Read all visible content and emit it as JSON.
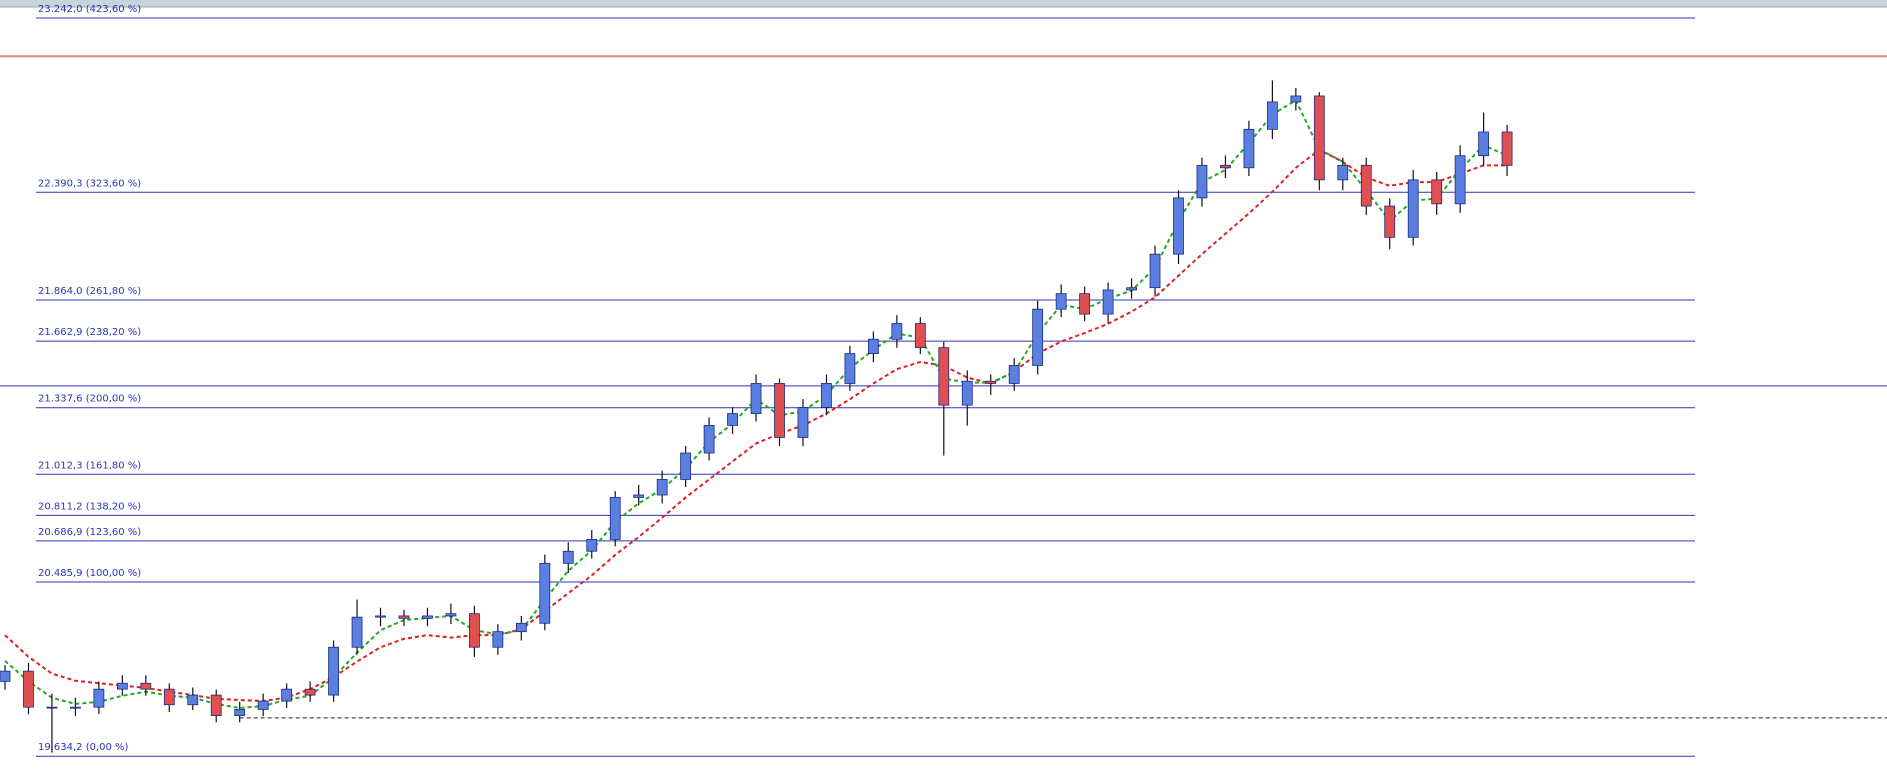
{
  "chart_data": {
    "type": "candlestick",
    "ylim": [
      19523,
      23330
    ],
    "up_color": "#5b7fe0",
    "down_color": "#e05050",
    "outline_color": "#1c2a80",
    "open": [
      20000,
      20050,
      19874,
      19874,
      19874,
      19962,
      19991,
      19962,
      19886,
      19933,
      19833,
      19863,
      19904,
      19962,
      19933,
      20167,
      20314,
      20320,
      20308,
      20320,
      20331,
      20167,
      20243,
      20284,
      20577,
      20636,
      20694,
      20899,
      20911,
      20987,
      21116,
      21251,
      21309,
      21456,
      21192,
      21339,
      21456,
      21602,
      21672,
      21749,
      21631,
      21350,
      21467,
      21456,
      21544,
      21819,
      21895,
      21795,
      21913,
      21924,
      22088,
      22363,
      22522,
      22510,
      22698,
      22832,
      22861,
      22451,
      22522,
      22323,
      22170,
      22451,
      22334,
      22569,
      22685
    ],
    "close": [
      20050,
      19874,
      19874,
      19874,
      19962,
      19991,
      19962,
      19886,
      19933,
      19833,
      19863,
      19904,
      19962,
      19933,
      20167,
      20314,
      20320,
      20308,
      20320,
      20331,
      20167,
      20243,
      20284,
      20577,
      20636,
      20694,
      20899,
      20911,
      20987,
      21116,
      21251,
      21309,
      21456,
      21192,
      21339,
      21456,
      21602,
      21672,
      21749,
      21631,
      21350,
      21467,
      21456,
      21544,
      21819,
      21895,
      21795,
      21913,
      21924,
      22088,
      22363,
      22522,
      22510,
      22698,
      22832,
      22861,
      22451,
      22522,
      22323,
      22170,
      22451,
      22334,
      22569,
      22685,
      22522
    ],
    "high": [
      20080,
      20090,
      19940,
      19920,
      20000,
      20030,
      20030,
      19990,
      19970,
      19960,
      19900,
      19940,
      19990,
      20000,
      20200,
      20400,
      20360,
      20350,
      20360,
      20380,
      20370,
      20280,
      20320,
      20620,
      20680,
      20740,
      20930,
      20960,
      21030,
      21150,
      21290,
      21340,
      21500,
      21480,
      21380,
      21500,
      21640,
      21710,
      21790,
      21780,
      21660,
      21520,
      21500,
      21580,
      21860,
      21940,
      21930,
      21950,
      21970,
      22130,
      22400,
      22560,
      22570,
      22740,
      22937,
      22900,
      22880,
      22560,
      22560,
      22360,
      22500,
      22490,
      22620,
      22780,
      22720
    ],
    "low": [
      19960,
      19840,
      19652,
      19830,
      19840,
      19930,
      19930,
      19850,
      19860,
      19800,
      19800,
      19830,
      19870,
      19900,
      19900,
      20130,
      20270,
      20270,
      20270,
      20280,
      20120,
      20130,
      20200,
      20250,
      20530,
      20600,
      20660,
      20860,
      20870,
      20950,
      21080,
      21210,
      21270,
      21150,
      21150,
      21300,
      21420,
      21560,
      21630,
      21600,
      21104,
      21250,
      21400,
      21420,
      21500,
      21780,
      21760,
      21750,
      21870,
      21880,
      22040,
      22320,
      22460,
      22470,
      22650,
      22790,
      22400,
      22400,
      22280,
      22112,
      22130,
      22280,
      22290,
      22520,
      22470
    ],
    "ma_fast": {
      "color": "#22aa22",
      "values": [
        20100,
        20000,
        19920,
        19890,
        19900,
        19930,
        19950,
        19930,
        19920,
        19890,
        19870,
        19880,
        19910,
        19930,
        20020,
        20140,
        20250,
        20300,
        20310,
        20320,
        20250,
        20230,
        20250,
        20400,
        20540,
        20640,
        20780,
        20870,
        20940,
        21040,
        21170,
        21260,
        21380,
        21300,
        21320,
        21400,
        21530,
        21620,
        21700,
        21680,
        21480,
        21460,
        21460,
        21510,
        21700,
        21840,
        21820,
        21870,
        21910,
        22020,
        22250,
        22440,
        22500,
        22630,
        22770,
        22840,
        22600,
        22540,
        22400,
        22250,
        22350,
        22360,
        22500,
        22620,
        22570
      ]
    },
    "ma_slow": {
      "color": "#e02020",
      "values": [
        20226,
        20120,
        20038,
        20003,
        19991,
        19980,
        19968,
        19950,
        19933,
        19915,
        19909,
        19904,
        19921,
        19962,
        20021,
        20097,
        20167,
        20208,
        20226,
        20214,
        20226,
        20226,
        20255,
        20343,
        20431,
        20518,
        20618,
        20706,
        20800,
        20899,
        20987,
        21075,
        21163,
        21210,
        21251,
        21309,
        21379,
        21456,
        21526,
        21561,
        21543,
        21485,
        21456,
        21514,
        21602,
        21661,
        21702,
        21748,
        21807,
        21877,
        21983,
        22088,
        22188,
        22287,
        22393,
        22510,
        22598,
        22539,
        22463,
        22422,
        22440,
        22440,
        22481,
        22522,
        22522
      ]
    },
    "fib_color": "#2b35b8",
    "fib_levels": [
      {
        "value": 23242.0,
        "label": "23.242,0 (423,60 %)"
      },
      {
        "value": 22390.3,
        "label": "22.390,3 (323,60 %)"
      },
      {
        "value": 21864.0,
        "label": "21.864,0 (261,80 %)"
      },
      {
        "value": 21662.9,
        "label": "21.662,9 (238,20 %)"
      },
      {
        "value": 21337.6,
        "label": "21.337,6 (200,00 %)"
      },
      {
        "value": 21012.3,
        "label": "21.012,3 (161,80 %)"
      },
      {
        "value": 20811.2,
        "label": "20.811,2 (138,20 %)"
      },
      {
        "value": 20686.9,
        "label": "20.686,9 (123,60 %)"
      },
      {
        "value": 20485.9,
        "label": "20.485,9 (100,00 %)"
      },
      {
        "value": 19634.2,
        "label": "19.634,2 (0,00 %)"
      }
    ],
    "horizontal_lines": [
      {
        "value": 23055,
        "color": "#f08080",
        "dashed": false
      },
      {
        "value": 21444,
        "color": "#2b35b8",
        "dashed": false
      },
      {
        "value": 19822,
        "color": "#222222",
        "dashed": true
      }
    ]
  }
}
